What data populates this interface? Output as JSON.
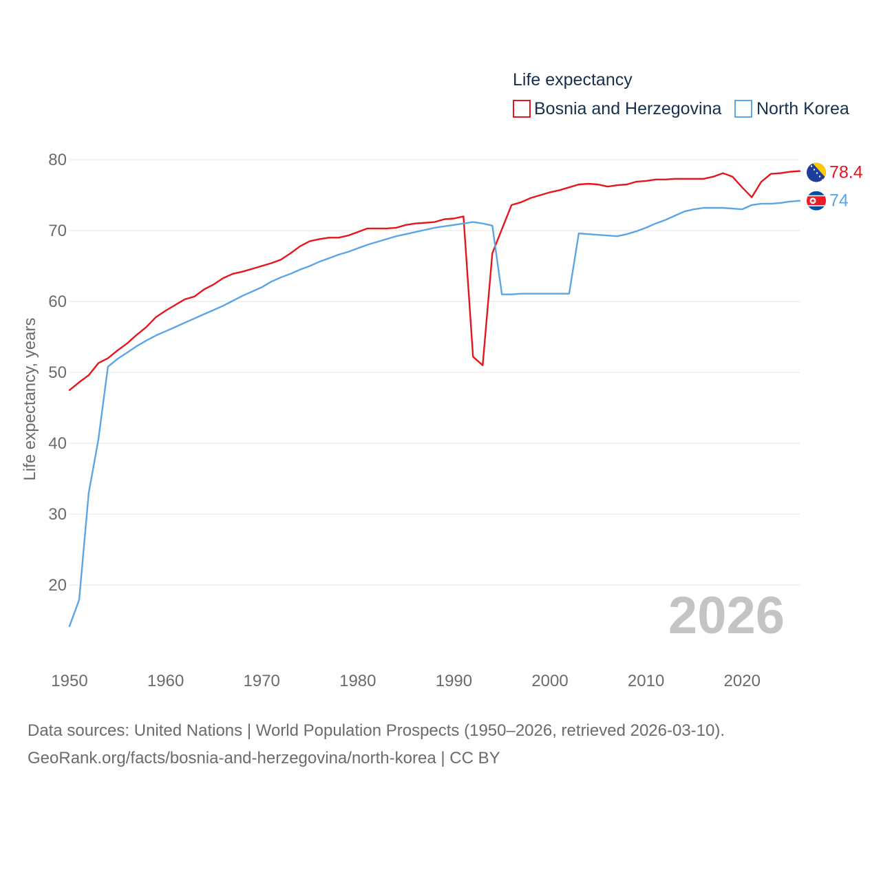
{
  "legend": {
    "title": "Life expectancy",
    "items": [
      {
        "label": "Bosnia and Herzegovina",
        "color": "#e8141b"
      },
      {
        "label": "North Korea",
        "color": "#5aa5e6"
      }
    ]
  },
  "year_marker": "2026",
  "footer": {
    "line1": "Data sources: United Nations | World Population Prospects (1950–2026, retrieved 2026-03-10).",
    "line2": "GeoRank.org/facts/bosnia-and-herzegovina/north-korea | CC BY"
  },
  "chart_data": {
    "type": "line",
    "title": "Life expectancy",
    "xlabel": "",
    "ylabel": "Life expectancy, years",
    "xlim": [
      1950,
      2026
    ],
    "ylim": [
      12,
      80
    ],
    "x_ticks": [
      "1950",
      "1960",
      "1970",
      "1980",
      "1990",
      "2000",
      "2010",
      "2020"
    ],
    "y_ticks": [
      "20",
      "30",
      "40",
      "50",
      "60",
      "70",
      "80"
    ],
    "grid": true,
    "series": [
      {
        "name": "Bosnia and Herzegovina",
        "color": "#e8141b",
        "end_label": "78.4",
        "x": [
          1950,
          1951,
          1952,
          1953,
          1954,
          1955,
          1956,
          1957,
          1958,
          1959,
          1960,
          1961,
          1962,
          1963,
          1964,
          1965,
          1966,
          1967,
          1968,
          1969,
          1970,
          1971,
          1972,
          1973,
          1974,
          1975,
          1976,
          1977,
          1978,
          1979,
          1980,
          1981,
          1982,
          1983,
          1984,
          1985,
          1986,
          1987,
          1988,
          1989,
          1990,
          1991,
          1992,
          1993,
          1994,
          1995,
          1996,
          1997,
          1998,
          1999,
          2000,
          2001,
          2002,
          2003,
          2004,
          2005,
          2006,
          2007,
          2008,
          2009,
          2010,
          2011,
          2012,
          2013,
          2014,
          2015,
          2016,
          2017,
          2018,
          2019,
          2020,
          2021,
          2022,
          2023,
          2024,
          2025,
          2026
        ],
        "values": [
          47.5,
          48.6,
          49.6,
          51.3,
          52.0,
          53.1,
          54.1,
          55.3,
          56.4,
          57.8,
          58.7,
          59.5,
          60.3,
          60.7,
          61.7,
          62.4,
          63.3,
          63.9,
          64.2,
          64.6,
          65.0,
          65.4,
          65.9,
          66.8,
          67.8,
          68.5,
          68.8,
          69.0,
          69.0,
          69.3,
          69.8,
          70.3,
          70.3,
          70.3,
          70.4,
          70.8,
          71.0,
          71.1,
          71.2,
          71.6,
          71.7,
          72.0,
          52.2,
          51.0,
          66.8,
          70.2,
          73.6,
          74.0,
          74.6,
          75.0,
          75.4,
          75.7,
          76.1,
          76.5,
          76.6,
          76.5,
          76.2,
          76.4,
          76.5,
          76.9,
          77.0,
          77.2,
          77.2,
          77.3,
          77.3,
          77.3,
          77.3,
          77.6,
          78.1,
          77.6,
          76.1,
          74.7,
          76.9,
          78.0,
          78.1,
          78.3,
          78.4
        ]
      },
      {
        "name": "North Korea",
        "color": "#5aa5e6",
        "end_label": "74",
        "x": [
          1950,
          1951,
          1952,
          1953,
          1954,
          1955,
          1956,
          1957,
          1958,
          1959,
          1960,
          1961,
          1962,
          1963,
          1964,
          1965,
          1966,
          1967,
          1968,
          1969,
          1970,
          1971,
          1972,
          1973,
          1974,
          1975,
          1976,
          1977,
          1978,
          1979,
          1980,
          1981,
          1982,
          1983,
          1984,
          1985,
          1986,
          1987,
          1988,
          1989,
          1990,
          1991,
          1992,
          1993,
          1994,
          1995,
          1996,
          1997,
          1998,
          1999,
          2000,
          2001,
          2002,
          2003,
          2004,
          2005,
          2006,
          2007,
          2008,
          2009,
          2010,
          2011,
          2012,
          2013,
          2014,
          2015,
          2016,
          2017,
          2018,
          2019,
          2020,
          2021,
          2022,
          2023,
          2024,
          2025,
          2026
        ],
        "values": [
          14.2,
          17.9,
          33.0,
          40.5,
          50.8,
          51.9,
          52.8,
          53.7,
          54.5,
          55.2,
          55.8,
          56.4,
          57.0,
          57.6,
          58.2,
          58.8,
          59.4,
          60.1,
          60.8,
          61.4,
          62.0,
          62.8,
          63.4,
          63.9,
          64.5,
          65.0,
          65.6,
          66.1,
          66.6,
          67.0,
          67.5,
          68.0,
          68.4,
          68.8,
          69.2,
          69.5,
          69.8,
          70.1,
          70.4,
          70.6,
          70.8,
          71.0,
          71.2,
          71.0,
          70.7,
          61.0,
          61.0,
          61.1,
          61.1,
          61.1,
          61.1,
          61.1,
          61.1,
          69.6,
          69.5,
          69.4,
          69.3,
          69.2,
          69.5,
          69.9,
          70.4,
          71.0,
          71.5,
          72.1,
          72.7,
          73.0,
          73.2,
          73.2,
          73.2,
          73.1,
          73.0,
          73.6,
          73.8,
          73.8,
          73.9,
          74.1,
          74.2
        ]
      }
    ]
  }
}
